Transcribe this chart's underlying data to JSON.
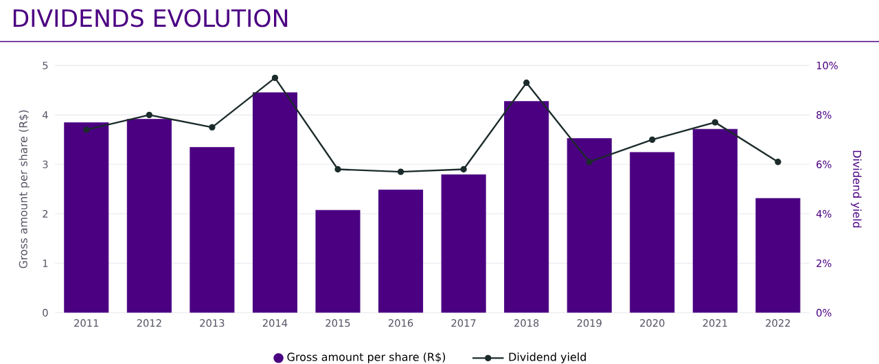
{
  "chart_data": {
    "type": "bar",
    "title": "DIVIDENDS EVOLUTION",
    "categories": [
      "2011",
      "2012",
      "2013",
      "2014",
      "2015",
      "2016",
      "2017",
      "2018",
      "2019",
      "2020",
      "2021",
      "2022"
    ],
    "series": [
      {
        "name": "Gross amount per share (R$)",
        "color": "#4b0082",
        "values": [
          3.84,
          3.91,
          3.34,
          4.45,
          2.07,
          2.48,
          2.79,
          4.27,
          3.52,
          3.24,
          3.71,
          2.31
        ]
      },
      {
        "name": "Dividend yield",
        "type": "line",
        "axis": "y2",
        "color": "#1c2b2b",
        "marker": "circle",
        "values": [
          7.4,
          8.0,
          7.5,
          9.5,
          5.8,
          5.7,
          5.8,
          9.3,
          6.1,
          7.0,
          7.7,
          6.1
        ]
      }
    ],
    "ylabel": "Gross amount per share (R$)",
    "y2label": "Dividend yield",
    "ylim": [
      0,
      5
    ],
    "yticks": [
      0,
      1,
      2,
      3,
      4,
      5
    ],
    "y2lim": [
      0,
      10
    ],
    "y2ticks": [
      {
        "value": 0,
        "label": "0%"
      },
      {
        "value": 2,
        "label": "2%"
      },
      {
        "value": 4,
        "label": "4%"
      },
      {
        "value": 6,
        "label": "6%"
      },
      {
        "value": 8,
        "label": "8%"
      },
      {
        "value": 10,
        "label": "10%"
      }
    ],
    "grid": "y",
    "legend": "bottom"
  }
}
